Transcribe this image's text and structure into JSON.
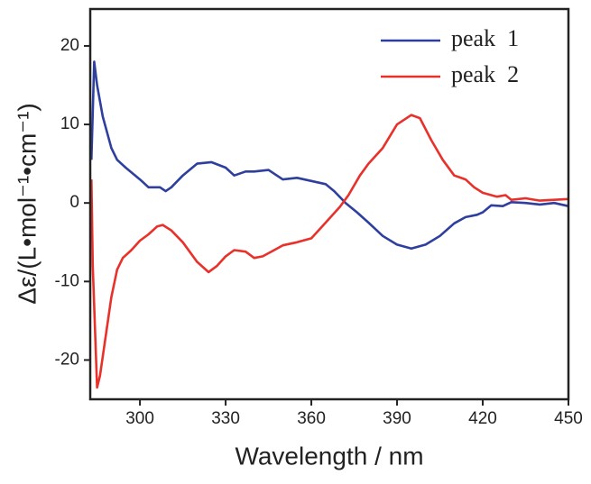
{
  "chart_data": {
    "type": "line",
    "xlabel": "Wavelength / nm",
    "ylabel": "Δε/(L•mol⁻¹•cm⁻¹)",
    "xlim": [
      282.6,
      450
    ],
    "ylim": [
      -25,
      24.7
    ],
    "xticks": [
      300,
      330,
      360,
      390,
      420,
      450
    ],
    "yticks": [
      -20,
      -10,
      0,
      10,
      20
    ],
    "legend": "upper right",
    "series": [
      {
        "name": "peak  1",
        "color": "#2e3f9e",
        "x": [
          283,
          284,
          285,
          287,
          290,
          292,
          295,
          300,
          303,
          307,
          309,
          311,
          315,
          320,
          325,
          330,
          333,
          337,
          340,
          345,
          350,
          355,
          360,
          365,
          368,
          372,
          376,
          380,
          385,
          390,
          395,
          400,
          405,
          410,
          414,
          418,
          420,
          423,
          427,
          430,
          435,
          440,
          445,
          450
        ],
        "values": [
          5.5,
          18,
          15,
          11,
          7,
          5.5,
          4.5,
          3,
          2,
          2,
          1.5,
          2,
          3.5,
          5,
          5.2,
          4.5,
          3.5,
          4,
          4,
          4.2,
          3,
          3.2,
          2.8,
          2.4,
          1.5,
          0,
          -1.2,
          -2.5,
          -4.2,
          -5.3,
          -5.8,
          -5.3,
          -4.2,
          -2.6,
          -1.8,
          -1.5,
          -1.2,
          -0.3,
          -0.4,
          0.1,
          0,
          -0.2,
          0,
          -0.4
        ]
      },
      {
        "name": "peak  2",
        "color": "#e8312a",
        "x": [
          283,
          283.5,
          285,
          286,
          288,
          290,
          292,
          294,
          297,
          300,
          303,
          306,
          308,
          311,
          315,
          320,
          324,
          327,
          330,
          333,
          337,
          340,
          343,
          347,
          350,
          355,
          360,
          365,
          370,
          373,
          377,
          380,
          385,
          390,
          395,
          398,
          402,
          406,
          410,
          414,
          417,
          420,
          425,
          428,
          430,
          435,
          440,
          445,
          450
        ],
        "values": [
          3,
          -8,
          -23.5,
          -22,
          -17,
          -12,
          -8.5,
          -7,
          -6,
          -4.8,
          -4,
          -3,
          -2.8,
          -3.5,
          -5,
          -7.5,
          -8.8,
          -8,
          -6.8,
          -6,
          -6.2,
          -7,
          -6.8,
          -6,
          -5.4,
          -5,
          -4.5,
          -2.5,
          -0.5,
          1,
          3.5,
          5,
          7,
          10,
          11.2,
          10.8,
          8,
          5.5,
          3.5,
          3,
          2,
          1.3,
          0.8,
          1,
          0.4,
          0.6,
          0.3,
          0.4,
          0.5
        ]
      }
    ]
  }
}
